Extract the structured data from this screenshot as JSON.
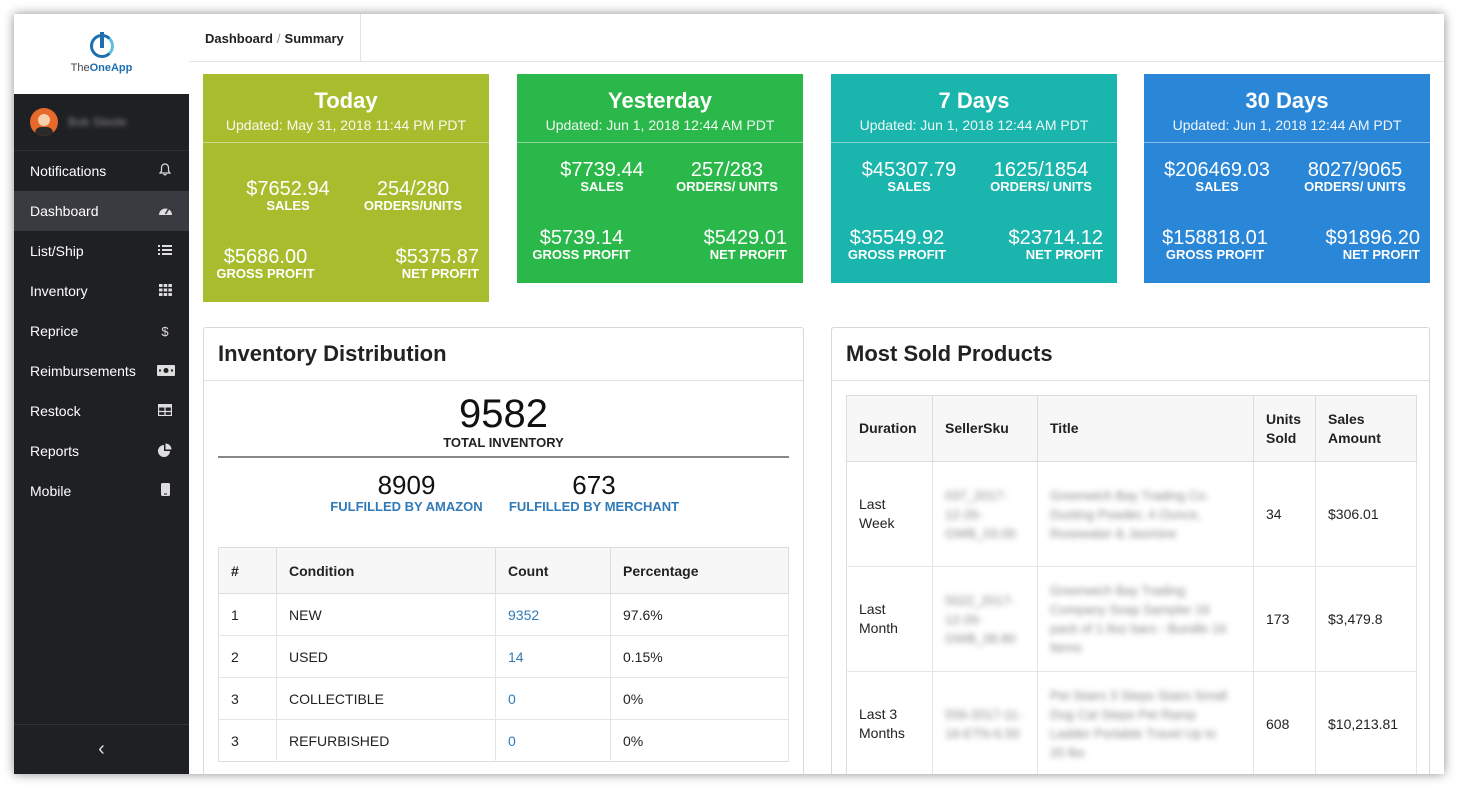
{
  "app": {
    "logo_prefix": "The",
    "logo_brand": "OneApp",
    "user_name": "Bob Steele"
  },
  "sidebar": {
    "items": [
      {
        "label": "Notifications",
        "icon": "bell-icon"
      },
      {
        "label": "Dashboard",
        "icon": "dashboard-icon",
        "active": true
      },
      {
        "label": "List/Ship",
        "icon": "list-icon"
      },
      {
        "label": "Inventory",
        "icon": "grid-icon"
      },
      {
        "label": "Reprice",
        "icon": "dollar-icon"
      },
      {
        "label": "Reimbursements",
        "icon": "money-icon"
      },
      {
        "label": "Restock",
        "icon": "table-icon"
      },
      {
        "label": "Reports",
        "icon": "pie-chart-icon"
      },
      {
        "label": "Mobile",
        "icon": "mobile-icon"
      }
    ],
    "collapse": "‹"
  },
  "breadcrumb": {
    "parent": "Dashboard",
    "sep": "/",
    "current": "Summary"
  },
  "cards": [
    {
      "title": "Today",
      "updated": "Updated: May 31, 2018 11:44 PM PDT",
      "sales": "$7652.94",
      "sales_label": "SALES",
      "orders": "254/280",
      "orders_label": "ORDERS/UNITS",
      "gross": "$5686.00",
      "gross_label": "GROSS PROFIT",
      "net": "$5375.87",
      "net_label": "NET PROFIT",
      "color": "#a8bd2d"
    },
    {
      "title": "Yesterday",
      "updated": "Updated: Jun 1, 2018 12:44 AM PDT",
      "sales": "$7739.44",
      "sales_label": "SALES",
      "orders": "257/283",
      "orders_label": "ORDERS/ UNITS",
      "gross": "$5739.14",
      "gross_label": "GROSS PROFIT",
      "net": "$5429.01",
      "net_label": "NET PROFIT",
      "color": "#2bb84a"
    },
    {
      "title": "7 Days",
      "updated": "Updated: Jun 1, 2018 12:44 AM PDT",
      "sales": "$45307.79",
      "sales_label": "SALES",
      "orders": "1625/1854",
      "orders_label": "ORDERS/ UNITS",
      "gross": "$35549.92",
      "gross_label": "GROSS PROFIT",
      "net": "$23714.12",
      "net_label": "NET PROFIT",
      "color": "#1ab5ac"
    },
    {
      "title": "30 Days",
      "updated": "Updated: Jun 1, 2018 12:44 AM PDT",
      "sales": "$206469.03",
      "sales_label": "SALES",
      "orders": "8027/9065",
      "orders_label": "ORDERS/ UNITS",
      "gross": "$158818.01",
      "gross_label": "GROSS PROFIT",
      "net": "$91896.20",
      "net_label": "NET PROFIT",
      "color": "#2a86d6"
    }
  ],
  "inventory": {
    "title": "Inventory Distribution",
    "total": "9582",
    "total_label": "TOTAL INVENTORY",
    "fba": "8909",
    "fba_label": "FULFILLED BY AMAZON",
    "fbm": "673",
    "fbm_label": "FULFILLED BY MERCHANT",
    "columns": [
      "#",
      "Condition",
      "Count",
      "Percentage"
    ],
    "rows": [
      {
        "n": "1",
        "condition": "NEW",
        "count": "9352",
        "pct": "97.6%"
      },
      {
        "n": "2",
        "condition": "USED",
        "count": "14",
        "pct": "0.15%"
      },
      {
        "n": "3",
        "condition": "COLLECTIBLE",
        "count": "0",
        "pct": "0%"
      },
      {
        "n": "3",
        "condition": "REFURBISHED",
        "count": "0",
        "pct": "0%"
      }
    ]
  },
  "most_sold": {
    "title": "Most Sold Products",
    "columns": [
      "Duration",
      "SellerSku",
      "Title",
      "Units Sold",
      "Sales Amount"
    ],
    "rows": [
      {
        "duration": "Last Week",
        "sku": "037_2017-12-26-GWB_03.00",
        "title": "Greenwich Bay Trading Co. Dusting Powder, 4 Ounce, Rosewater & Jasmine",
        "units": "34",
        "amount": "$306.01"
      },
      {
        "duration": "Last Month",
        "sku": "5022_2017-12-26-GWB_08.80",
        "title": "Greenwich Bay Trading Company Soap Sampler 16 pack of 1.9oz bars - Bundle 16 Items",
        "units": "173",
        "amount": "$3,479.8"
      },
      {
        "duration": "Last 3 Months",
        "sku": "556-2017-11-16-ETN-6.50",
        "title": "Pet Stairs 3 Steps Stairs Small Dog Cat Steps Pet Ramp Ladder Portable Travel Up to 20 lbs",
        "units": "608",
        "amount": "$10,213.81"
      }
    ]
  }
}
